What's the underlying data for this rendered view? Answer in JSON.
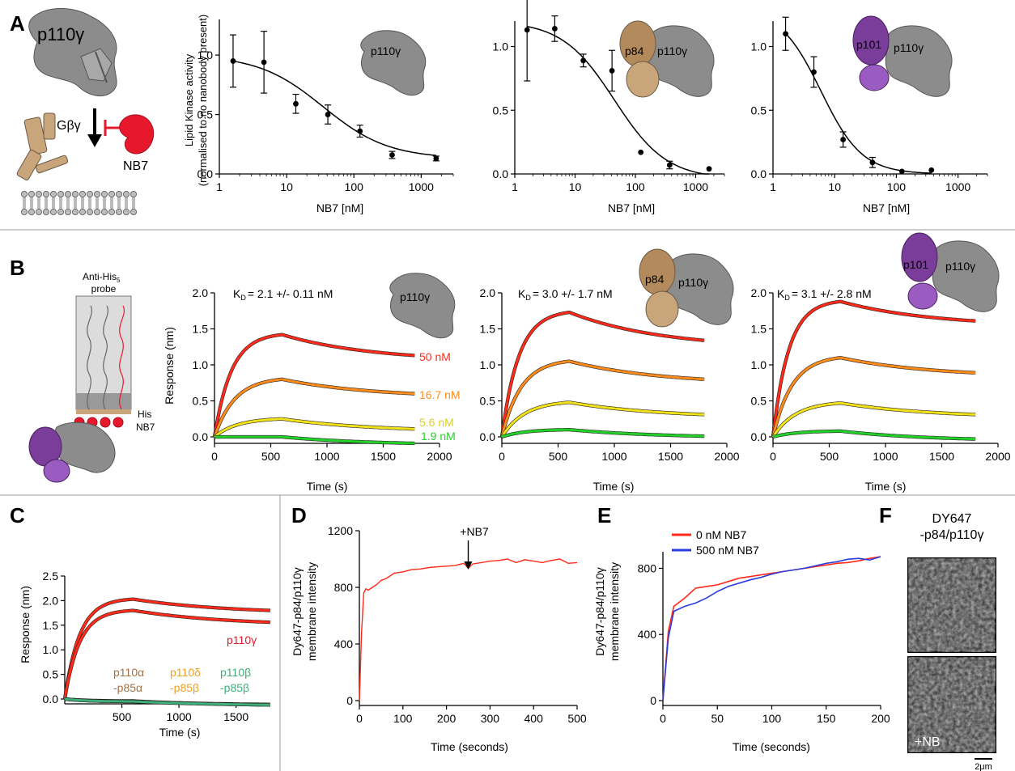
{
  "colors": {
    "p110g_gray": "#8c8c8c",
    "p84_brown": "#b38a5c",
    "p101_purple": "#7a3d9a",
    "nb7_red": "#e8182c",
    "gbg_tan": "#c9a57b",
    "c50": "#ff2a1a",
    "c16": "#ff8c1a",
    "c5": "#f2e21a",
    "c19": "#22d22a",
    "line_red": "#ff2a1a",
    "line_blue": "#2a3de0",
    "c_p110a": "#a0714a",
    "c_p110d": "#f0a020",
    "c_p110b": "#3fb07a"
  },
  "panels": {
    "A": {
      "letter": "A",
      "schematic": {
        "p110g": "p110γ",
        "gbg": "Gβγ",
        "nb7": "NB7"
      },
      "ylabel_line1": "Lipid Kinase activity",
      "ylabel_line2": "(normalised to no nanobody present)",
      "xlabel": "NB7 [nM]",
      "insets": [
        {
          "labels": [
            "p110γ"
          ]
        },
        {
          "labels": [
            "p84",
            "p110γ"
          ]
        },
        {
          "labels": [
            "p101",
            "p110γ"
          ]
        }
      ]
    },
    "B": {
      "letter": "B",
      "probe_label": "Anti-His",
      "probe_sub": "5",
      "probe_label2": "probe",
      "his_label": "His",
      "nb7_label": "NB7",
      "ylabel": "Response (nm)",
      "xlabel": "Time (s)",
      "kd_prefix": "K",
      "kd_sub": "D",
      "kd_values": [
        "= 2.1 +/- 0.11 nM",
        "= 3.0 +/- 1.7 nM",
        "= 3.1 +/- 2.8 nM"
      ],
      "conc_labels": [
        "50 nM",
        "16.7 nM",
        "5.6 nM",
        "1.9 nM"
      ]
    },
    "C": {
      "letter": "C",
      "ylabel": "Response (nm)",
      "xlabel": "Time (s)",
      "label_p110g": "p110γ",
      "isoforms": [
        {
          "top": "p110α",
          "bottom": "-p85α"
        },
        {
          "top": "p110δ",
          "bottom": "-p85β"
        },
        {
          "top": "p110β",
          "bottom": "-p85β"
        }
      ]
    },
    "D": {
      "letter": "D",
      "ylabel_line1": "Dy647-p84/p110γ",
      "ylabel_line2": "membrane intensity",
      "xlabel": "Time (seconds)",
      "arrow_label": "+NB7"
    },
    "E": {
      "letter": "E",
      "ylabel_line1": "Dy647-p84/p110γ",
      "ylabel_line2": "membrane intensity",
      "xlabel": "Time (seconds)",
      "legend": [
        "0 nM NB7",
        "500 nM NB7"
      ]
    },
    "F": {
      "letter": "F",
      "title_line1": "DY647",
      "title_line2": "-p84/p110γ",
      "image_label": "+NB",
      "scalebar": "2μm"
    }
  },
  "chart_data": [
    {
      "id": "A1",
      "type": "scatter",
      "xlabel": "NB7 [nM]",
      "ylabel": "Lipid Kinase activity (normalised to no nanobody present)",
      "xscale": "log",
      "xlim": [
        1,
        3000
      ],
      "ylim": [
        0,
        1.3
      ],
      "xticks": [
        1,
        10,
        100,
        1000
      ],
      "yticks": [
        0.0,
        0.5,
        1.0
      ],
      "x": [
        1.6,
        4.6,
        13.7,
        41,
        123,
        370,
        1670
      ],
      "y": [
        0.95,
        0.94,
        0.59,
        0.5,
        0.36,
        0.16,
        0.13
      ],
      "err": [
        0.22,
        0.26,
        0.08,
        0.08,
        0.05,
        0.03,
        0.02
      ],
      "fit": {
        "top": 1.0,
        "bottom": 0.13,
        "ic50": 35,
        "hill": 0.9
      }
    },
    {
      "id": "A2",
      "type": "scatter",
      "xlabel": "NB7 [nM]",
      "ylabel": "",
      "xscale": "log",
      "xlim": [
        1,
        3000
      ],
      "ylim": [
        0,
        1.2
      ],
      "xticks": [
        1,
        10,
        100,
        1000
      ],
      "yticks": [
        0.0,
        0.5,
        1.0
      ],
      "x": [
        1.6,
        4.6,
        13.7,
        41,
        123,
        370,
        1670
      ],
      "y": [
        1.13,
        1.14,
        0.89,
        0.81,
        0.17,
        0.07,
        0.04
      ],
      "err": [
        0.4,
        0.1,
        0.05,
        0.16,
        0.0,
        0.03,
        0.0
      ],
      "fit": {
        "top": 1.2,
        "bottom": -0.04,
        "ic50": 45,
        "hill": 1.0
      }
    },
    {
      "id": "A3",
      "type": "scatter",
      "xlabel": "NB7 [nM]",
      "ylabel": "",
      "xscale": "log",
      "xlim": [
        1,
        3000
      ],
      "ylim": [
        0,
        1.2
      ],
      "xticks": [
        1,
        10,
        100,
        1000
      ],
      "yticks": [
        0.0,
        0.5,
        1.0
      ],
      "x": [
        1.6,
        4.6,
        13.7,
        41,
        123,
        370
      ],
      "y": [
        1.1,
        0.8,
        0.27,
        0.09,
        0.02,
        0.03
      ],
      "err": [
        0.13,
        0.12,
        0.06,
        0.04,
        0.0,
        0.0
      ],
      "fit": {
        "top": 1.3,
        "bottom": 0.0,
        "ic50": 6,
        "hill": 1.3
      }
    },
    {
      "id": "B1",
      "type": "line",
      "xlabel": "Time (s)",
      "ylabel": "Response (nm)",
      "xlim": [
        0,
        2000
      ],
      "ylim": [
        0,
        2.0
      ],
      "xticks": [
        0,
        500,
        1000,
        1500,
        2000
      ],
      "yticks": [
        0.0,
        0.5,
        1.0,
        1.5,
        2.0
      ],
      "series": [
        {
          "name": "50 nM",
          "assoc_end": 600,
          "end": 1780,
          "peak": 1.42,
          "tau_on": 150,
          "final": 1.13
        },
        {
          "name": "16.7 nM",
          "assoc_end": 600,
          "end": 1780,
          "peak": 0.8,
          "tau_on": 180,
          "final": 0.6
        },
        {
          "name": "5.6 nM",
          "assoc_end": 600,
          "end": 1780,
          "peak": 0.25,
          "tau_on": 200,
          "final": 0.11
        },
        {
          "name": "1.9 nM",
          "assoc_end": 600,
          "end": 1780,
          "peak": 0.0,
          "tau_on": 200,
          "final": -0.09
        }
      ]
    },
    {
      "id": "B2",
      "type": "line",
      "xlabel": "Time (s)",
      "ylabel": "",
      "xlim": [
        0,
        2000
      ],
      "ylim": [
        0,
        2.0
      ],
      "xticks": [
        0,
        500,
        1000,
        1500,
        2000
      ],
      "yticks": [
        0.0,
        0.5,
        1.0,
        1.5,
        2.0
      ],
      "series": [
        {
          "name": "",
          "assoc_end": 600,
          "end": 1800,
          "peak": 1.73,
          "tau_on": 150,
          "final": 1.34
        },
        {
          "name": "",
          "assoc_end": 600,
          "end": 1800,
          "peak": 1.05,
          "tau_on": 170,
          "final": 0.8
        },
        {
          "name": "",
          "assoc_end": 600,
          "end": 1800,
          "peak": 0.48,
          "tau_on": 200,
          "final": 0.31
        },
        {
          "name": "",
          "assoc_end": 600,
          "end": 1800,
          "peak": 0.1,
          "tau_on": 200,
          "final": 0.01
        }
      ]
    },
    {
      "id": "B3",
      "type": "line",
      "xlabel": "Time (s)",
      "ylabel": "",
      "xlim": [
        0,
        2000
      ],
      "ylim": [
        0,
        2.0
      ],
      "xticks": [
        0,
        500,
        1000,
        1500,
        2000
      ],
      "yticks": [
        0.0,
        0.5,
        1.0,
        1.5,
        2.0
      ],
      "series": [
        {
          "name": "",
          "assoc_end": 600,
          "end": 1800,
          "peak": 1.88,
          "tau_on": 140,
          "final": 1.61
        },
        {
          "name": "",
          "assoc_end": 600,
          "end": 1800,
          "peak": 1.1,
          "tau_on": 170,
          "final": 0.89
        },
        {
          "name": "",
          "assoc_end": 600,
          "end": 1800,
          "peak": 0.47,
          "tau_on": 200,
          "final": 0.31
        },
        {
          "name": "",
          "assoc_end": 600,
          "end": 1800,
          "peak": 0.08,
          "tau_on": 200,
          "final": -0.03
        }
      ]
    },
    {
      "id": "C",
      "type": "line",
      "xlabel": "Time (s)",
      "ylabel": "Response (nm)",
      "xlim": [
        0,
        1800
      ],
      "ylim": [
        0,
        2.5
      ],
      "xticks": [
        500,
        1000,
        1500
      ],
      "yticks": [
        0.0,
        0.5,
        1.0,
        1.5,
        2.0,
        2.5
      ],
      "series": [
        {
          "name": "p110γ",
          "assoc_end": 600,
          "end": 1800,
          "peak": 2.03,
          "tau_on": 130,
          "final": 1.8
        },
        {
          "name": "p110γ",
          "assoc_end": 600,
          "end": 1800,
          "peak": 1.8,
          "tau_on": 130,
          "final": 1.56
        },
        {
          "name": "p110α-p85α",
          "assoc_end": 600,
          "end": 1800,
          "peak": -0.04,
          "tau_on": 200,
          "final": -0.12
        },
        {
          "name": "p110δ-p85β",
          "assoc_end": 600,
          "end": 1800,
          "peak": -0.05,
          "tau_on": 200,
          "final": -0.11
        },
        {
          "name": "p110β-p85β",
          "assoc_end": 600,
          "end": 1800,
          "peak": -0.05,
          "tau_on": 200,
          "final": -0.12
        }
      ]
    },
    {
      "id": "D",
      "type": "line",
      "xlabel": "Time (seconds)",
      "ylabel": "Dy647-p84/p110γ membrane intensity",
      "xlim": [
        0,
        500
      ],
      "ylim": [
        0,
        1200
      ],
      "xticks": [
        0,
        100,
        200,
        300,
        400,
        500
      ],
      "yticks": [
        0,
        400,
        800,
        1200
      ],
      "annotation": {
        "text": "+NB7",
        "x": 250
      },
      "x": [
        0,
        5,
        10,
        15,
        20,
        30,
        40,
        50,
        60,
        70,
        80,
        100,
        120,
        140,
        160,
        180,
        200,
        220,
        240,
        250,
        260,
        280,
        300,
        320,
        340,
        360,
        380,
        400,
        420,
        440,
        460,
        480,
        500
      ],
      "y": [
        0,
        480,
        760,
        790,
        780,
        800,
        820,
        850,
        860,
        880,
        900,
        910,
        925,
        930,
        940,
        945,
        950,
        955,
        970,
        935,
        965,
        975,
        985,
        990,
        1000,
        975,
        995,
        985,
        975,
        990,
        1000,
        970,
        975
      ]
    },
    {
      "id": "E",
      "type": "line",
      "xlabel": "Time (seconds)",
      "ylabel": "Dy647-p84/p110γ membrane intensity",
      "xlim": [
        0,
        200
      ],
      "ylim": [
        0,
        900
      ],
      "xticks": [
        0,
        50,
        100,
        150,
        200
      ],
      "yticks": [
        0,
        400,
        800
      ],
      "series": [
        {
          "name": "0 nM NB7",
          "x": [
            0,
            5,
            10,
            20,
            30,
            40,
            50,
            60,
            70,
            80,
            90,
            100,
            110,
            120,
            130,
            140,
            150,
            160,
            170,
            180,
            190,
            200
          ],
          "y": [
            0,
            420,
            570,
            620,
            680,
            690,
            700,
            720,
            740,
            750,
            760,
            770,
            780,
            790,
            800,
            810,
            820,
            830,
            835,
            845,
            860,
            870
          ]
        },
        {
          "name": "500 nM NB7",
          "x": [
            0,
            5,
            10,
            20,
            30,
            40,
            50,
            60,
            70,
            80,
            90,
            100,
            110,
            120,
            130,
            140,
            150,
            160,
            170,
            180,
            190,
            200
          ],
          "y": [
            0,
            380,
            540,
            570,
            590,
            620,
            660,
            690,
            710,
            730,
            745,
            765,
            780,
            790,
            800,
            815,
            830,
            840,
            855,
            860,
            850,
            870
          ]
        }
      ]
    }
  ]
}
